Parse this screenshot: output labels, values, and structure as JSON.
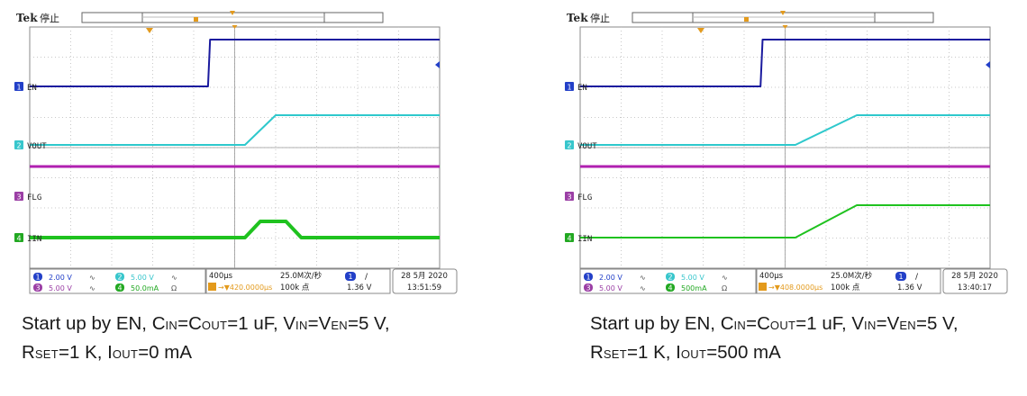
{
  "chart_data": [
    {
      "type": "line",
      "title": "Start up by EN, IOUT=0 mA",
      "brand": "Tek",
      "status": "停止",
      "x_unit": "µs",
      "x_range": [
        0,
        4000
      ],
      "time_per_div_label": "400µs",
      "sample_rate": "25.0M次/秒",
      "record_length": "100k 点",
      "trigger_position": "420.0000µs",
      "trigger_channel": "1",
      "trigger_slope": "/",
      "trigger_level": "1.36 V",
      "date": "28 5月 2020",
      "time": "13:51:59",
      "channels": [
        {
          "id": "1",
          "label": "EN",
          "scale": "2.00 V",
          "coupling": "∿",
          "color": "#1a1a9e",
          "badge": "#2340c8"
        },
        {
          "id": "2",
          "label": "VOUT",
          "scale": "5.00 V",
          "coupling": "∿",
          "color": "#2ec8cc",
          "badge": "#38c6cc"
        },
        {
          "id": "3",
          "label": "FLG",
          "scale": "5.00 V",
          "coupling": "∿",
          "color": "#b020b0",
          "badge": "#9b3fa5"
        },
        {
          "id": "4",
          "label": "IIN",
          "scale": "50.0mA",
          "coupling": "Ω",
          "color": "#1fc21f",
          "badge": "#22a822"
        }
      ],
      "series": [
        {
          "name": "EN",
          "x": [
            0,
            1740,
            1760,
            4000
          ],
          "y": [
            0,
            0,
            5,
            5
          ]
        },
        {
          "name": "VOUT",
          "x": [
            0,
            2100,
            2400,
            4000
          ],
          "y": [
            0,
            0,
            5,
            5
          ]
        },
        {
          "name": "FLG",
          "x": [
            0,
            4000
          ],
          "y": [
            5,
            5
          ]
        },
        {
          "name": "IIN",
          "x": [
            0,
            2100,
            2250,
            2500,
            2650,
            4000
          ],
          "y": [
            0,
            0,
            40,
            40,
            0,
            0
          ]
        }
      ],
      "caption_lines": [
        [
          [
            "Start  up  by  EN,  C",
            ""
          ],
          [
            "IN",
            "sub"
          ],
          [
            "=C",
            ""
          ],
          [
            "OUT",
            "sub"
          ],
          [
            "=1  uF,  V",
            ""
          ],
          [
            "IN",
            "sub"
          ],
          [
            "=V",
            ""
          ],
          [
            "EN",
            "sub"
          ],
          [
            "=5  V,",
            ""
          ]
        ],
        [
          [
            "R",
            ""
          ],
          [
            "SET",
            "sub"
          ],
          [
            "=1 K, I",
            ""
          ],
          [
            "OUT",
            "sub"
          ],
          [
            "=0 mA",
            ""
          ]
        ]
      ]
    },
    {
      "type": "line",
      "title": "Start up by EN, IOUT=500 mA",
      "brand": "Tek",
      "status": "停止",
      "x_unit": "µs",
      "x_range": [
        0,
        4000
      ],
      "time_per_div_label": "400µs",
      "sample_rate": "25.0M次/秒",
      "record_length": "100k 点",
      "trigger_position": "408.0000µs",
      "trigger_channel": "1",
      "trigger_slope": "/",
      "trigger_level": "1.36 V",
      "date": "28 5月 2020",
      "time": "13:40:17",
      "channels": [
        {
          "id": "1",
          "label": "EN",
          "scale": "2.00 V",
          "coupling": "∿",
          "color": "#1a1a9e",
          "badge": "#2340c8"
        },
        {
          "id": "2",
          "label": "VOUT",
          "scale": "5.00 V",
          "coupling": "∿",
          "color": "#2ec8cc",
          "badge": "#38c6cc"
        },
        {
          "id": "3",
          "label": "FLG",
          "scale": "5.00 V",
          "coupling": "∿",
          "color": "#b020b0",
          "badge": "#9b3fa5"
        },
        {
          "id": "4",
          "label": "IIN",
          "scale": "500mA",
          "coupling": "Ω",
          "color": "#1fc21f",
          "badge": "#22a822"
        }
      ],
      "series": [
        {
          "name": "EN",
          "x": [
            0,
            1760,
            1780,
            4000
          ],
          "y": [
            0,
            0,
            5,
            5
          ]
        },
        {
          "name": "VOUT",
          "x": [
            0,
            2100,
            2700,
            4000
          ],
          "y": [
            0,
            0,
            5,
            5
          ]
        },
        {
          "name": "FLG",
          "x": [
            0,
            4000
          ],
          "y": [
            5,
            5
          ]
        },
        {
          "name": "IIN",
          "x": [
            0,
            2100,
            2700,
            4000
          ],
          "y": [
            0,
            0,
            500,
            500
          ]
        }
      ],
      "caption_lines": [
        [
          [
            "Start  up  by  EN,  C",
            ""
          ],
          [
            "IN",
            "sub"
          ],
          [
            "=C",
            ""
          ],
          [
            "OUT",
            "sub"
          ],
          [
            "=1  uF,  V",
            ""
          ],
          [
            "IN",
            "sub"
          ],
          [
            "=V",
            ""
          ],
          [
            "EN",
            "sub"
          ],
          [
            "=5  V,",
            ""
          ]
        ],
        [
          [
            "R",
            ""
          ],
          [
            "SET",
            "sub"
          ],
          [
            "=1 K, I",
            ""
          ],
          [
            "OUT",
            "sub"
          ],
          [
            "=500 mA",
            ""
          ]
        ]
      ]
    }
  ]
}
